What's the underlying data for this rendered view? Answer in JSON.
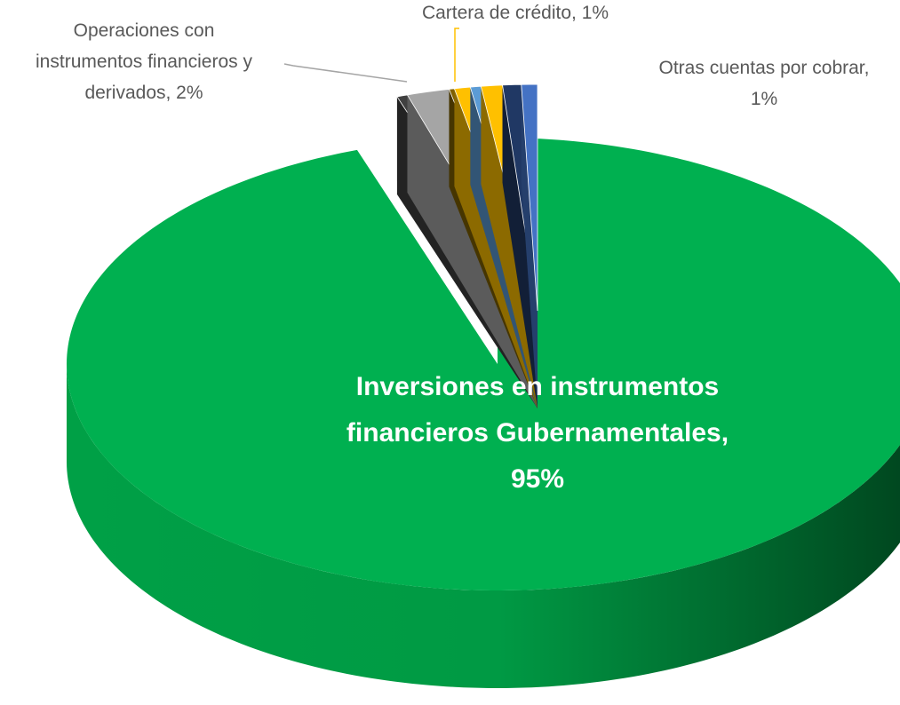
{
  "chart_data": {
    "type": "pie",
    "values": [
      95,
      0.4,
      1.6,
      0.2,
      0.6,
      0.4,
      0.8,
      0.7,
      0.6
    ],
    "value_labels": [
      "Inversiones en instrumentos financieros Gubernamentales, 95%",
      null,
      "Operaciones con instrumentos financieros y derivados, 2%",
      null,
      "Cartera de crédito, 1%",
      null,
      null,
      null,
      "Otras cuentas por cobrar, 1%"
    ],
    "colors": [
      "#00b050",
      "#404040",
      "#a5a5a5",
      "#7f6000",
      "#ffc000",
      "#5b9bd5",
      "#ffc000",
      "#203864",
      "#4472c4"
    ]
  }
}
